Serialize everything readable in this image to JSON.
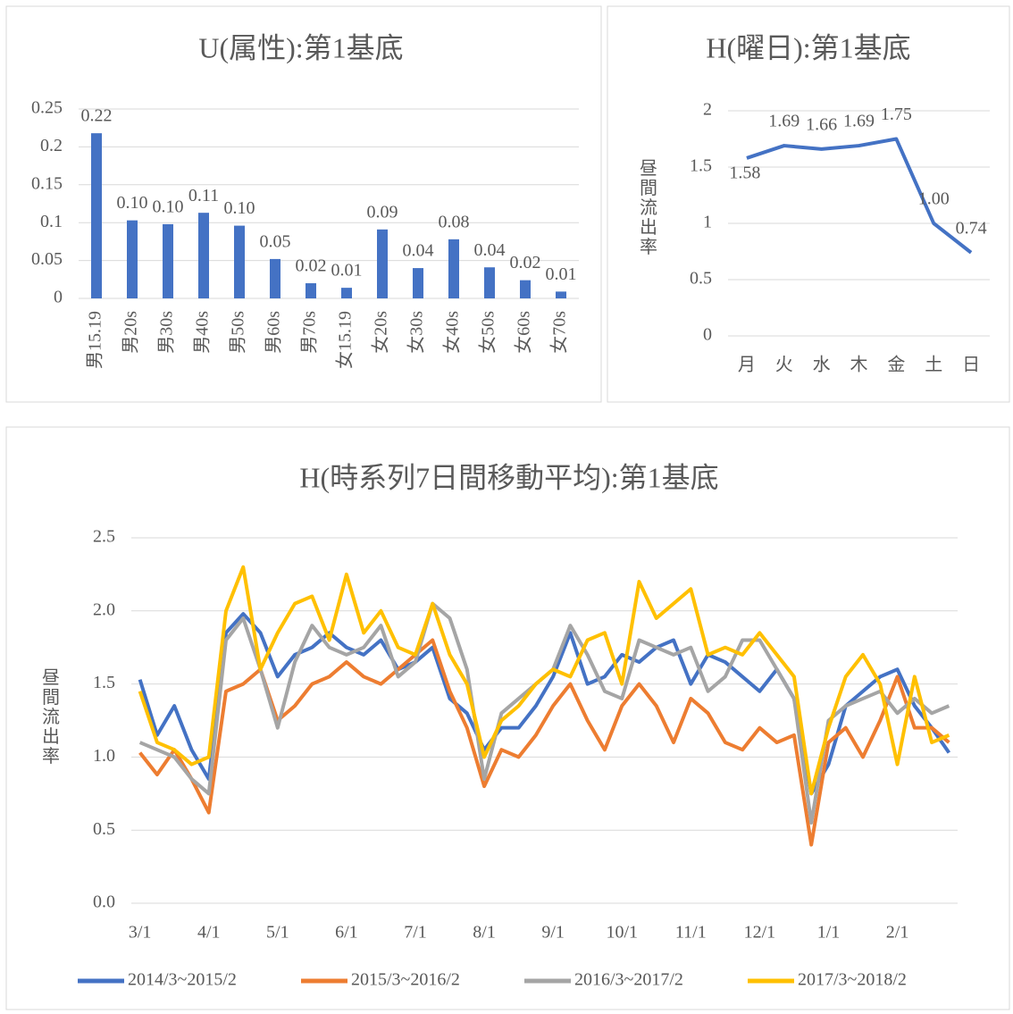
{
  "chart_data": [
    {
      "type": "bar",
      "title": "U(属性):第1基底",
      "categories": [
        "男15.19",
        "男20s",
        "男30s",
        "男40s",
        "男50s",
        "男60s",
        "男70s",
        "女15.19",
        "女20s",
        "女30s",
        "女40s",
        "女50s",
        "女60s",
        "女70s"
      ],
      "values": [
        0.218,
        0.103,
        0.098,
        0.113,
        0.096,
        0.052,
        0.02,
        0.014,
        0.091,
        0.04,
        0.078,
        0.041,
        0.024,
        0.009
      ],
      "value_labels": [
        "0.22",
        "0.10",
        "0.10",
        "0.11",
        "0.10",
        "0.05",
        "0.02",
        "0.01",
        "0.09",
        "0.04",
        "0.08",
        "0.04",
        "0.02",
        "0.01"
      ],
      "color": "#4472c4",
      "ylim": [
        0,
        0.25
      ],
      "yticks": [
        0,
        0.05,
        0.1,
        0.15,
        0.2,
        0.25
      ],
      "grid": true
    },
    {
      "type": "line",
      "title": "H(曜日):第1基底",
      "y_label": "昼間流出率",
      "categories": [
        "月",
        "火",
        "水",
        "木",
        "金",
        "土",
        "日"
      ],
      "values": [
        1.58,
        1.69,
        1.66,
        1.69,
        1.75,
        1.0,
        0.74
      ],
      "value_labels": [
        "1.58",
        "1.69",
        "1.66",
        "1.69",
        "1.75",
        "1.00",
        "0.74"
      ],
      "color": "#4472c4",
      "ylim": [
        0,
        2
      ],
      "yticks": [
        0,
        0.5,
        1,
        1.5,
        2
      ],
      "grid": true
    },
    {
      "type": "line",
      "title": "H(時系列7日間移動平均):第1基底",
      "y_label": "昼間流出率",
      "categories": [
        "3/1",
        null,
        null,
        null,
        "4/1",
        null,
        null,
        null,
        "5/1",
        null,
        null,
        null,
        "6/1",
        null,
        null,
        null,
        "7/1",
        null,
        null,
        null,
        "8/1",
        null,
        null,
        null,
        "9/1",
        null,
        null,
        null,
        "10/1",
        null,
        null,
        null,
        "11/1",
        null,
        null,
        null,
        "12/1",
        null,
        null,
        null,
        "1/1",
        null,
        null,
        null,
        "2/1",
        null,
        null,
        null
      ],
      "series": [
        {
          "name": "2014/3~2015/2",
          "color": "#4472c4",
          "values": [
            1.53,
            1.15,
            1.35,
            1.05,
            0.85,
            1.85,
            1.98,
            1.85,
            1.55,
            1.7,
            1.75,
            1.85,
            1.75,
            1.7,
            1.8,
            1.6,
            1.65,
            1.75,
            1.4,
            1.3,
            1.05,
            1.2,
            1.2,
            1.35,
            1.55,
            1.85,
            1.5,
            1.55,
            1.7,
            1.65,
            1.75,
            1.8,
            1.5,
            1.7,
            1.65,
            1.55,
            1.45,
            1.6,
            1.4,
            0.75,
            0.95,
            1.35,
            1.45,
            1.55,
            1.6,
            1.35,
            1.2,
            1.03
          ]
        },
        {
          "name": "2015/3~2016/2",
          "color": "#ed7d31",
          "values": [
            1.03,
            0.88,
            1.05,
            0.85,
            0.62,
            1.45,
            1.5,
            1.6,
            1.25,
            1.35,
            1.5,
            1.55,
            1.65,
            1.55,
            1.5,
            1.6,
            1.7,
            1.8,
            1.45,
            1.2,
            0.8,
            1.05,
            1.0,
            1.15,
            1.35,
            1.5,
            1.25,
            1.05,
            1.35,
            1.5,
            1.35,
            1.1,
            1.4,
            1.3,
            1.1,
            1.05,
            1.2,
            1.1,
            1.15,
            0.4,
            1.1,
            1.2,
            1.0,
            1.25,
            1.55,
            1.2,
            1.2,
            1.1
          ]
        },
        {
          "name": "2016/3~2017/2",
          "color": "#a5a5a5",
          "values": [
            1.1,
            1.05,
            1.0,
            0.85,
            0.75,
            1.8,
            1.95,
            1.6,
            1.2,
            1.65,
            1.9,
            1.75,
            1.7,
            1.75,
            1.9,
            1.55,
            1.65,
            2.05,
            1.95,
            1.6,
            0.85,
            1.3,
            1.4,
            1.5,
            1.6,
            1.9,
            1.7,
            1.45,
            1.4,
            1.8,
            1.75,
            1.7,
            1.75,
            1.45,
            1.55,
            1.8,
            1.8,
            1.6,
            1.4,
            0.55,
            1.25,
            1.35,
            1.4,
            1.45,
            1.3,
            1.4,
            1.3,
            1.35
          ]
        },
        {
          "name": "2017/3~2018/2",
          "color": "#ffc000",
          "values": [
            1.45,
            1.1,
            1.05,
            0.95,
            1.0,
            2.0,
            2.3,
            1.6,
            1.85,
            2.05,
            2.1,
            1.8,
            2.25,
            1.85,
            2.0,
            1.75,
            1.7,
            2.05,
            1.7,
            1.5,
            1.0,
            1.25,
            1.35,
            1.5,
            1.6,
            1.55,
            1.8,
            1.85,
            1.5,
            2.2,
            1.95,
            2.05,
            2.15,
            1.7,
            1.75,
            1.7,
            1.85,
            1.7,
            1.55,
            0.75,
            1.2,
            1.55,
            1.7,
            1.5,
            0.95,
            1.55,
            1.1,
            1.15
          ]
        }
      ],
      "ylim": [
        0,
        2.5
      ],
      "yticks": [
        {
          "value": 0,
          "label": "0.0"
        },
        0.5,
        {
          "value": 1,
          "label": "1.0"
        },
        1.5,
        {
          "value": 2,
          "label": "2.0"
        },
        2.5
      ],
      "grid": true,
      "legend": "bottom"
    }
  ]
}
